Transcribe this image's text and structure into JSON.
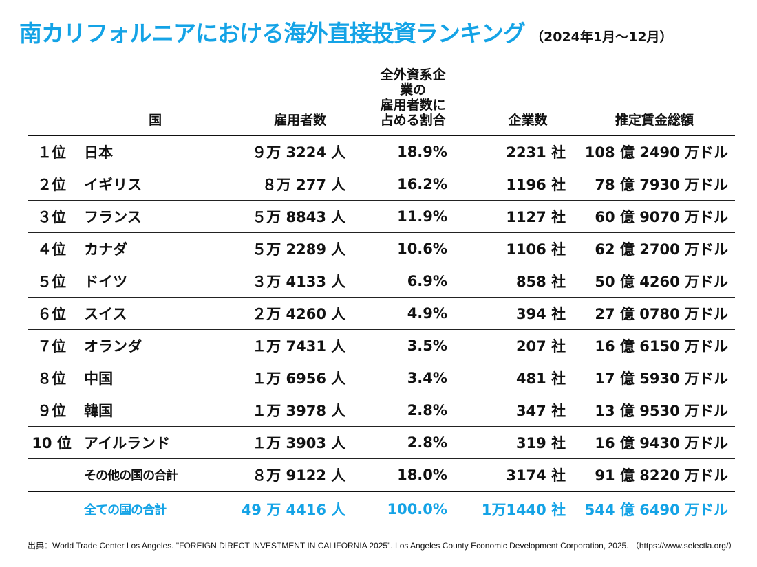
{
  "header": {
    "title": "南カリフォルニアにおける海外直接投資ランキング",
    "subtitle": "（2024年1月～12月）"
  },
  "table": {
    "columns": {
      "rank": "",
      "country": "国",
      "employees": "雇用者数",
      "share_line1": "全外資系企業の",
      "share_line2": "雇用者数に",
      "share_line3": "占める割合",
      "companies": "企業数",
      "wages": "推定賃金総額"
    },
    "rows": [
      {
        "rank": "１位",
        "country": "日本",
        "employees": "９万 3224 人",
        "share": "18.9%",
        "companies": "2231 社",
        "wages": "108 億 2490 万ドル"
      },
      {
        "rank": "２位",
        "country": "イギリス",
        "employees": "８万 277 人",
        "share": "16.2%",
        "companies": "1196 社",
        "wages": "78 億 7930 万ドル"
      },
      {
        "rank": "３位",
        "country": "フランス",
        "employees": "５万 8843 人",
        "share": "11.9%",
        "companies": "1127 社",
        "wages": "60 億 9070 万ドル"
      },
      {
        "rank": "４位",
        "country": "カナダ",
        "employees": "５万 2289 人",
        "share": "10.6%",
        "companies": "1106 社",
        "wages": "62 億 2700 万ドル"
      },
      {
        "rank": "５位",
        "country": "ドイツ",
        "employees": "３万 4133 人",
        "share": "6.9%",
        "companies": "858 社",
        "wages": "50 億 4260 万ドル"
      },
      {
        "rank": "６位",
        "country": "スイス",
        "employees": "２万 4260 人",
        "share": "4.9%",
        "companies": "394 社",
        "wages": "27 億 0780 万ドル"
      },
      {
        "rank": "７位",
        "country": "オランダ",
        "employees": "１万 7431 人",
        "share": "3.5%",
        "companies": "207 社",
        "wages": "16 億 6150 万ドル"
      },
      {
        "rank": "８位",
        "country": "中国",
        "employees": "１万 6956 人",
        "share": "3.4%",
        "companies": "481 社",
        "wages": "17 億 5930 万ドル"
      },
      {
        "rank": "９位",
        "country": "韓国",
        "employees": "１万 3978 人",
        "share": "2.8%",
        "companies": "347 社",
        "wages": "13 億 9530 万ドル"
      },
      {
        "rank": "10 位",
        "country": "アイルランド",
        "employees": "１万 3903 人",
        "share": "2.8%",
        "companies": "319 社",
        "wages": "16 億 9430 万ドル"
      }
    ],
    "others": {
      "rank": "",
      "country": "その他の国の合計",
      "employees": "８万 9122 人",
      "share": "18.0%",
      "companies": "3174 社",
      "wages": "91 億 8220 万ドル"
    },
    "total": {
      "rank": "",
      "country": "全ての国の合計",
      "employees": "49 万 4416 人",
      "share": "100.0%",
      "companies": "1万1440 社",
      "wages": "544 億 6490 万ドル"
    }
  },
  "footer": {
    "source": "出典：World Trade Center Los Angeles. \"FOREIGN DIRECT INVESTMENT IN CALIFORNIA 2025\". Los Angeles County Economic Development Corporation, 2025. （https://www.selectla.org/）"
  },
  "colors": {
    "accent": "#14a3e6",
    "text": "#111111",
    "background": "#ffffff"
  }
}
